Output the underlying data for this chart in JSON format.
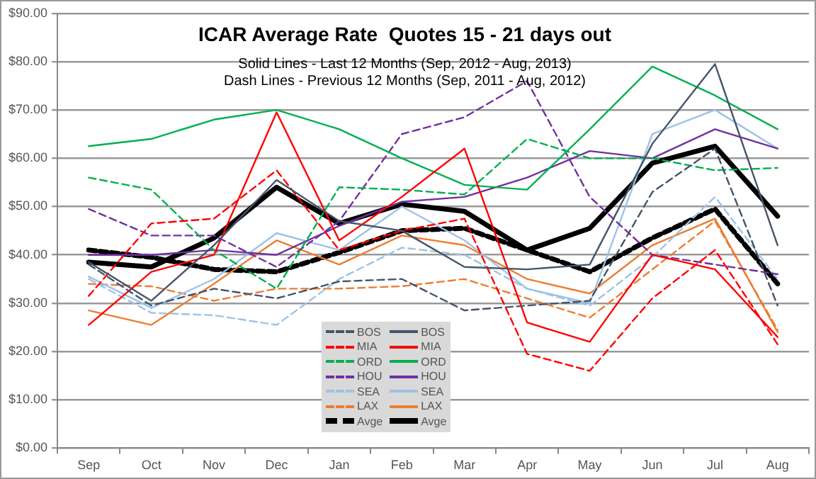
{
  "chart_data": {
    "type": "line",
    "title": "ICAR Average Rate  Quotes 15 - 21 days out",
    "subtitle": "Solid Lines - Last 12 Months (Sep, 2012 - Aug, 2013)\nDash Lines - Previous 12 Months (Sep, 2011 - Aug, 2012)",
    "categories": [
      "Sep",
      "Oct",
      "Nov",
      "Dec",
      "Jan",
      "Feb",
      "Mar",
      "Apr",
      "May",
      "Jun",
      "Jul",
      "Aug"
    ],
    "ylim": [
      0,
      90
    ],
    "yticks": [
      {
        "value": 0,
        "label": "$0.00"
      },
      {
        "value": 10,
        "label": "$10.00"
      },
      {
        "value": 20,
        "label": "$20.00"
      },
      {
        "value": 30,
        "label": "$30.00"
      },
      {
        "value": 40,
        "label": "$40.00"
      },
      {
        "value": 50,
        "label": "$50.00"
      },
      {
        "value": 60,
        "label": "$60.00"
      },
      {
        "value": 70,
        "label": "$70.00"
      },
      {
        "value": 80,
        "label": "$80.00"
      },
      {
        "value": 90,
        "label": "$90.00"
      }
    ],
    "grid": "y",
    "legend": "bottom",
    "marker": "none",
    "series": [
      {
        "name": "BOS",
        "color": "#44546a",
        "line_style": "dashed",
        "values": [
          38,
          29.5,
          33,
          31,
          34.5,
          35,
          28.5,
          29.5,
          30.5,
          53,
          62,
          29.5
        ]
      },
      {
        "name": "BOS",
        "color": "#44546a",
        "line_style": "solid",
        "values": [
          38.5,
          30.5,
          42,
          55.5,
          47,
          45,
          37.5,
          37,
          38,
          63,
          79.5,
          42
        ]
      },
      {
        "name": "MIA",
        "color": "#ff0000",
        "line_style": "dashed",
        "values": [
          31.5,
          46.5,
          47.5,
          57.5,
          41,
          45,
          47.5,
          19.5,
          16,
          31,
          41,
          21.5
        ]
      },
      {
        "name": "MIA",
        "color": "#ff0000",
        "line_style": "solid",
        "values": [
          25.5,
          36.5,
          40,
          69.5,
          43,
          52,
          62,
          26,
          22,
          40,
          37,
          23
        ]
      },
      {
        "name": "ORD",
        "color": "#00b050",
        "line_style": "dashed",
        "values": [
          56,
          53.5,
          41,
          33,
          54,
          53.5,
          52.5,
          64,
          60,
          60,
          57.5,
          58
        ]
      },
      {
        "name": "ORD",
        "color": "#00b050",
        "line_style": "solid",
        "values": [
          62.5,
          64,
          68,
          70,
          66,
          60,
          54.5,
          53.5,
          66,
          79,
          73,
          66
        ]
      },
      {
        "name": "HOU",
        "color": "#7030a0",
        "line_style": "dashed",
        "values": [
          49.5,
          44,
          44,
          37.5,
          47,
          65,
          68.5,
          76,
          52,
          40,
          38,
          36
        ]
      },
      {
        "name": "HOU",
        "color": "#7030a0",
        "line_style": "solid",
        "values": [
          40,
          40,
          41,
          40,
          46,
          51,
          52,
          56,
          61.5,
          60,
          66,
          62
        ]
      },
      {
        "name": "SEA",
        "color": "#9dc3e6",
        "line_style": "dashed",
        "values": [
          35,
          28,
          27.5,
          25.5,
          35,
          41.5,
          40,
          33,
          29.5,
          39.5,
          52,
          35
        ]
      },
      {
        "name": "SEA",
        "color": "#9dc3e6",
        "line_style": "solid",
        "values": [
          35.5,
          29,
          35,
          44.5,
          41,
          50,
          43,
          33,
          30,
          65,
          70,
          62
        ]
      },
      {
        "name": "LAX",
        "color": "#ed7d31",
        "line_style": "dashed",
        "values": [
          34,
          33.5,
          30.5,
          33,
          33,
          33.5,
          35,
          31,
          27,
          37,
          47,
          24.5
        ]
      },
      {
        "name": "LAX",
        "color": "#ed7d31",
        "line_style": "solid",
        "values": [
          28.5,
          25.5,
          34,
          43,
          38,
          44,
          42,
          35,
          32,
          42,
          47.5,
          24
        ]
      },
      {
        "name": "Avge",
        "color": "#000000",
        "line_style": "dashed",
        "values": [
          41,
          39.5,
          37,
          36.5,
          40.5,
          45,
          45.5,
          41,
          36.5,
          43.5,
          49.5,
          34
        ]
      },
      {
        "name": "Avge",
        "color": "#000000",
        "line_style": "solid",
        "values": [
          38.5,
          37.5,
          43.5,
          54,
          46.5,
          50.5,
          49,
          41,
          45.5,
          59,
          62.5,
          48
        ]
      }
    ]
  }
}
